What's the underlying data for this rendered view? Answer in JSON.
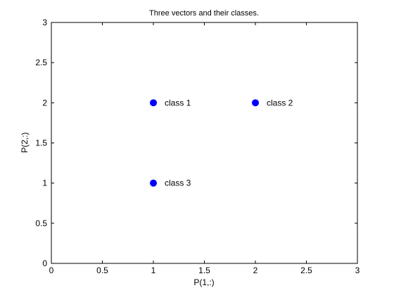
{
  "chart_data": {
    "type": "scatter",
    "title": "Three vectors and their classes.",
    "xlabel": "P(1,:)",
    "ylabel": "P(2,:)",
    "xlim": [
      0,
      3
    ],
    "ylim": [
      0,
      3
    ],
    "xticks": [
      0,
      0.5,
      1,
      1.5,
      2,
      2.5,
      3
    ],
    "yticks": [
      0,
      0.5,
      1,
      1.5,
      2,
      2.5,
      3
    ],
    "xtick_labels": [
      "0",
      "0.5",
      "1",
      "1.5",
      "2",
      "2.5",
      "3"
    ],
    "ytick_labels": [
      "0",
      "0.5",
      "1",
      "1.5",
      "2",
      "2.5",
      "3"
    ],
    "grid": false,
    "marker_color": "#0000ff",
    "points": [
      {
        "x": 1,
        "y": 2,
        "label": "class 1"
      },
      {
        "x": 2,
        "y": 2,
        "label": "class 2"
      },
      {
        "x": 1,
        "y": 1,
        "label": "class 3"
      }
    ]
  }
}
